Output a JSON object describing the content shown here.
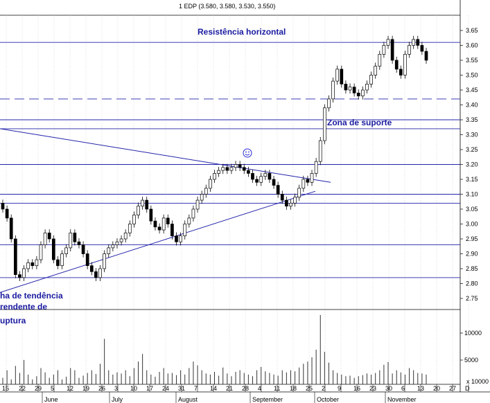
{
  "chart_data": {
    "type": "candlestick",
    "title": "1 EDP (3.580, 3.580, 3.530, 3.550)",
    "xlabel": "",
    "ylabel": "",
    "ylim": [
      2.7,
      3.7
    ],
    "y_ticks": [
      "3.65",
      "3.60",
      "3.55",
      "3.50",
      "3.45",
      "3.40",
      "3.35",
      "3.30",
      "3.25",
      "3.20",
      "3.15",
      "3.10",
      "3.05",
      "3.00",
      "2.95",
      "2.90",
      "2.85",
      "2.80",
      "2.75"
    ],
    "volume_ticks": [
      "10000",
      "5000"
    ],
    "volume_unit": "x 10000",
    "day_ticks": [
      "15",
      "22",
      "29",
      "5",
      "12",
      "19",
      "26",
      "3",
      "10",
      "17",
      "24",
      "31",
      "7",
      "14",
      "21",
      "28",
      "4",
      "11",
      "18",
      "25",
      "2",
      "9",
      "16",
      "23",
      "30",
      "6",
      "13",
      "20",
      "27",
      "D"
    ],
    "month_labels": [
      "June",
      "July",
      "August",
      "September",
      "October",
      "November"
    ],
    "annotations": {
      "resistance": "Resistência horizontal",
      "support": "Zona de suporte",
      "trendline_1": "ha de tendência",
      "trendline_2": "rendente de",
      "trendline_3": "uptura"
    },
    "horizontal_levels": [
      3.61,
      3.42,
      3.35,
      3.32,
      3.2,
      3.1,
      3.07,
      2.93,
      2.82
    ],
    "dashed_level": 3.42,
    "trendlines": [
      {
        "name": "downtrend",
        "from": [
          "start",
          3.32
        ],
        "to": [
          "Sep 24",
          3.14
        ]
      },
      {
        "name": "uptrend",
        "from": [
          "start",
          2.77
        ],
        "to": [
          "Sep 25",
          3.11
        ]
      }
    ],
    "ohlc_close": [
      3.05,
      3.02,
      2.95,
      2.83,
      2.82,
      2.85,
      2.87,
      2.86,
      2.88,
      2.93,
      2.97,
      2.95,
      2.88,
      2.86,
      2.9,
      2.92,
      2.97,
      2.94,
      2.93,
      2.9,
      2.86,
      2.84,
      2.82,
      2.85,
      2.9,
      2.92,
      2.93,
      2.94,
      2.95,
      2.97,
      3.0,
      3.03,
      3.06,
      3.08,
      3.05,
      3.01,
      2.99,
      2.98,
      3.02,
      3.0,
      2.96,
      2.94,
      2.96,
      3.0,
      3.02,
      3.05,
      3.08,
      3.1,
      3.12,
      3.15,
      3.17,
      3.18,
      3.19,
      3.18,
      3.19,
      3.2,
      3.19,
      3.18,
      3.17,
      3.15,
      3.14,
      3.16,
      3.17,
      3.15,
      3.13,
      3.1,
      3.08,
      3.06,
      3.07,
      3.09,
      3.12,
      3.15,
      3.14,
      3.17,
      3.21,
      3.28,
      3.39,
      3.42,
      3.48,
      3.52,
      3.47,
      3.45,
      3.46,
      3.44,
      3.43,
      3.45,
      3.47,
      3.5,
      3.53,
      3.57,
      3.6,
      3.62,
      3.55,
      3.52,
      3.5,
      3.57,
      3.6,
      3.62,
      3.6,
      3.58,
      3.55
    ],
    "volume": [
      120,
      260,
      90,
      340,
      210,
      450,
      180,
      90,
      150,
      300,
      220,
      120,
      180,
      260,
      90,
      140,
      300,
      260,
      120,
      160,
      210,
      260,
      190,
      380,
      840,
      260,
      180,
      220,
      200,
      260,
      150,
      300,
      420,
      560,
      260,
      180,
      140,
      230,
      300,
      200,
      210,
      170,
      260,
      180,
      300,
      420,
      350,
      260,
      200,
      180,
      230,
      160,
      310,
      200,
      150,
      230,
      260,
      210,
      180,
      150,
      260,
      320,
      240,
      210,
      180,
      160,
      260,
      220,
      260,
      240,
      310,
      380,
      420,
      500,
      640,
      1280,
      600,
      400,
      260,
      210,
      180,
      150,
      160,
      120,
      150,
      170,
      200,
      180,
      210,
      260,
      360,
      410,
      200,
      260,
      220,
      180,
      300,
      260,
      210,
      200,
      180
    ]
  }
}
